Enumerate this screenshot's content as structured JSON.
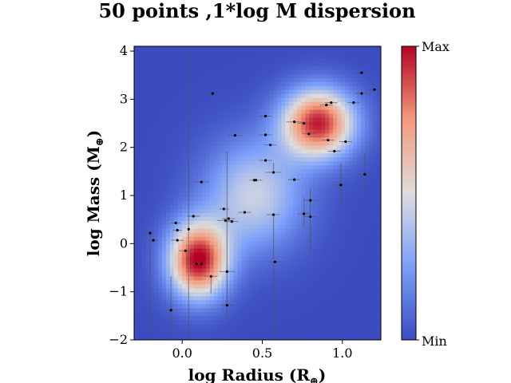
{
  "chart_data": {
    "type": "scatter",
    "title": "50 points ,1*log M dispersion",
    "xlabel": "log Radius (R",
    "xlabel_sub": "⊕",
    "xlabel_close": ")",
    "ylabel": "log Mass (M",
    "ylabel_sub": "⊕",
    "ylabel_close": ")",
    "xlim": [
      -0.3,
      1.24
    ],
    "ylim": [
      -2.0,
      4.1
    ],
    "xticks": [
      {
        "value": 0.0,
        "label": "0.0"
      },
      {
        "value": 0.5,
        "label": "0.5"
      },
      {
        "value": 1.0,
        "label": "1.0"
      }
    ],
    "yticks": [
      {
        "value": -2,
        "label": "−2"
      },
      {
        "value": -1,
        "label": "−1"
      },
      {
        "value": 0,
        "label": "0"
      },
      {
        "value": 1,
        "label": "1"
      },
      {
        "value": 2,
        "label": "2"
      },
      {
        "value": 3,
        "label": "3"
      },
      {
        "value": 4,
        "label": "4"
      }
    ],
    "background": "density heatmap",
    "colormap": "coolwarm",
    "colorbar": {
      "min_label": "Min",
      "max_label": "Max"
    },
    "colors": {
      "low": "#3b4cc0",
      "mid": "#dddddd",
      "high": "#b40426",
      "points": "#000000",
      "errorbars": "#555555"
    },
    "density_centers": [
      {
        "x": 0.1,
        "y": -0.35,
        "weight": 1.0,
        "sx": 0.13,
        "sy": 0.55
      },
      {
        "x": 0.85,
        "y": 2.5,
        "weight": 0.95,
        "sx": 0.16,
        "sy": 0.5
      },
      {
        "x": 0.45,
        "y": 1.0,
        "weight": 0.45,
        "sx": 0.22,
        "sy": 0.8
      }
    ],
    "points": [
      {
        "x": -0.2,
        "y": 0.22,
        "xerr": 0.04,
        "yerr_lo": 2.3,
        "yerr_hi": 0.0
      },
      {
        "x": -0.18,
        "y": 0.07,
        "xerr": 0.03,
        "yerr_lo": 0.0,
        "yerr_hi": 0.0
      },
      {
        "x": -0.07,
        "y": -1.38,
        "xerr": 0.04,
        "yerr_lo": 0.6,
        "yerr_hi": 0.7
      },
      {
        "x": -0.04,
        "y": 0.43,
        "xerr": 0.03,
        "yerr_lo": 0.0,
        "yerr_hi": 0.0
      },
      {
        "x": -0.03,
        "y": 0.28,
        "xerr": 0.03,
        "yerr_lo": 0.0,
        "yerr_hi": 0.0
      },
      {
        "x": -0.03,
        "y": 0.07,
        "xerr": 0.04,
        "yerr_lo": 0.0,
        "yerr_hi": 0.0
      },
      {
        "x": 0.02,
        "y": -0.15,
        "xerr": 0.04,
        "yerr_lo": 0.0,
        "yerr_hi": 0.0
      },
      {
        "x": 0.04,
        "y": 0.3,
        "xerr": 0.0,
        "yerr_lo": 2.3,
        "yerr_hi": 3.8
      },
      {
        "x": 0.07,
        "y": 0.57,
        "xerr": 0.04,
        "yerr_lo": 0.0,
        "yerr_hi": 0.0
      },
      {
        "x": 0.12,
        "y": 1.28,
        "xerr": 0.05,
        "yerr_lo": 0.0,
        "yerr_hi": 0.0
      },
      {
        "x": 0.12,
        "y": -0.42,
        "xerr": 0.05,
        "yerr_lo": 0.0,
        "yerr_hi": 0.0
      },
      {
        "x": 0.18,
        "y": -0.68,
        "xerr": 0.04,
        "yerr_lo": 0.35,
        "yerr_hi": 0.0
      },
      {
        "x": 0.19,
        "y": 3.12,
        "xerr": 0.04,
        "yerr_lo": 0.0,
        "yerr_hi": 0.0
      },
      {
        "x": 0.26,
        "y": 0.72,
        "xerr": 0.03,
        "yerr_lo": 0.0,
        "yerr_hi": 0.0
      },
      {
        "x": 0.27,
        "y": 0.48,
        "xerr": 0.05,
        "yerr_lo": 0.0,
        "yerr_hi": 0.0
      },
      {
        "x": 0.28,
        "y": -0.58,
        "xerr": 0.05,
        "yerr_lo": 1.0,
        "yerr_hi": 2.5
      },
      {
        "x": 0.28,
        "y": -1.28,
        "xerr": 0.04,
        "yerr_lo": 0.0,
        "yerr_hi": 0.0
      },
      {
        "x": 0.29,
        "y": 0.52,
        "xerr": 0.04,
        "yerr_lo": 0.0,
        "yerr_hi": 0.0
      },
      {
        "x": 0.31,
        "y": 0.46,
        "xerr": 0.04,
        "yerr_lo": 0.0,
        "yerr_hi": 0.0
      },
      {
        "x": 0.33,
        "y": 2.25,
        "xerr": 0.04,
        "yerr_lo": 0.0,
        "yerr_hi": 0.0
      },
      {
        "x": 0.39,
        "y": 0.65,
        "xerr": 0.04,
        "yerr_lo": 0.0,
        "yerr_hi": 0.0
      },
      {
        "x": 0.46,
        "y": 1.32,
        "xerr": 0.04,
        "yerr_lo": 0.0,
        "yerr_hi": 0.0
      },
      {
        "x": 0.52,
        "y": 2.65,
        "xerr": 0.04,
        "yerr_lo": 0.0,
        "yerr_hi": 0.0
      },
      {
        "x": 0.52,
        "y": 2.26,
        "xerr": 0.04,
        "yerr_lo": 0.0,
        "yerr_hi": 0.0
      },
      {
        "x": 0.52,
        "y": 1.73,
        "xerr": 0.04,
        "yerr_lo": 0.0,
        "yerr_hi": 0.0
      },
      {
        "x": 0.55,
        "y": 2.05,
        "xerr": 0.04,
        "yerr_lo": 0.0,
        "yerr_hi": 0.0
      },
      {
        "x": 0.57,
        "y": 1.48,
        "xerr": 0.05,
        "yerr_lo": 0.0,
        "yerr_hi": 0.2
      },
      {
        "x": 0.57,
        "y": 0.6,
        "xerr": 0.04,
        "yerr_lo": 3.0,
        "yerr_hi": 0.0
      },
      {
        "x": 0.58,
        "y": -0.38,
        "xerr": 0.04,
        "yerr_lo": 0.0,
        "yerr_hi": 0.0
      },
      {
        "x": 0.7,
        "y": 2.53,
        "xerr": 0.05,
        "yerr_lo": 0.0,
        "yerr_hi": 0.0
      },
      {
        "x": 0.7,
        "y": 1.33,
        "xerr": 0.04,
        "yerr_lo": 0.0,
        "yerr_hi": 0.0
      },
      {
        "x": 0.76,
        "y": 2.5,
        "xerr": 0.04,
        "yerr_lo": 0.0,
        "yerr_hi": 0.0
      },
      {
        "x": 0.76,
        "y": 0.62,
        "xerr": 0.04,
        "yerr_lo": 0.3,
        "yerr_hi": 0.35
      },
      {
        "x": 0.79,
        "y": 2.28,
        "xerr": 0.04,
        "yerr_lo": 0.0,
        "yerr_hi": 0.0
      },
      {
        "x": 0.8,
        "y": 0.9,
        "xerr": 0.04,
        "yerr_lo": 0.0,
        "yerr_hi": 0.0
      },
      {
        "x": 0.8,
        "y": 0.56,
        "xerr": 0.04,
        "yerr_lo": 0.75,
        "yerr_hi": 0.6
      },
      {
        "x": 0.9,
        "y": 2.88,
        "xerr": 0.04,
        "yerr_lo": 0.0,
        "yerr_hi": 0.0
      },
      {
        "x": 0.91,
        "y": 2.15,
        "xerr": 0.04,
        "yerr_lo": 0.0,
        "yerr_hi": 0.0
      },
      {
        "x": 0.93,
        "y": 2.93,
        "xerr": 0.04,
        "yerr_lo": 0.0,
        "yerr_hi": 0.0
      },
      {
        "x": 0.95,
        "y": 1.92,
        "xerr": 0.04,
        "yerr_lo": 0.0,
        "yerr_hi": 0.0
      },
      {
        "x": 0.99,
        "y": 1.22,
        "xerr": 0.05,
        "yerr_lo": 0.45,
        "yerr_hi": 0.45
      },
      {
        "x": 1.02,
        "y": 2.12,
        "xerr": 0.04,
        "yerr_lo": 0.0,
        "yerr_hi": 0.0
      },
      {
        "x": 1.07,
        "y": 2.93,
        "xerr": 0.04,
        "yerr_lo": 0.0,
        "yerr_hi": 0.0
      },
      {
        "x": 1.07,
        "y": 4.12,
        "xerr": 0.04,
        "yerr_lo": 0.0,
        "yerr_hi": 0.0
      },
      {
        "x": 1.12,
        "y": 3.55,
        "xerr": 0.04,
        "yerr_lo": 0.0,
        "yerr_hi": 0.0
      },
      {
        "x": 1.12,
        "y": 3.12,
        "xerr": 0.04,
        "yerr_lo": 0.0,
        "yerr_hi": 0.0
      },
      {
        "x": 1.14,
        "y": 1.44,
        "xerr": 0.04,
        "yerr_lo": 0.4,
        "yerr_hi": 0.45
      },
      {
        "x": 1.2,
        "y": 3.2,
        "xerr": 0.04,
        "yerr_lo": 0.0,
        "yerr_hi": 0.0
      },
      {
        "x": 0.45,
        "y": 1.32,
        "xerr": 0.0,
        "yerr_lo": 0.0,
        "yerr_hi": 0.0
      },
      {
        "x": 0.09,
        "y": -0.42,
        "xerr": 0.0,
        "yerr_lo": 0.0,
        "yerr_hi": 0.0
      }
    ]
  }
}
